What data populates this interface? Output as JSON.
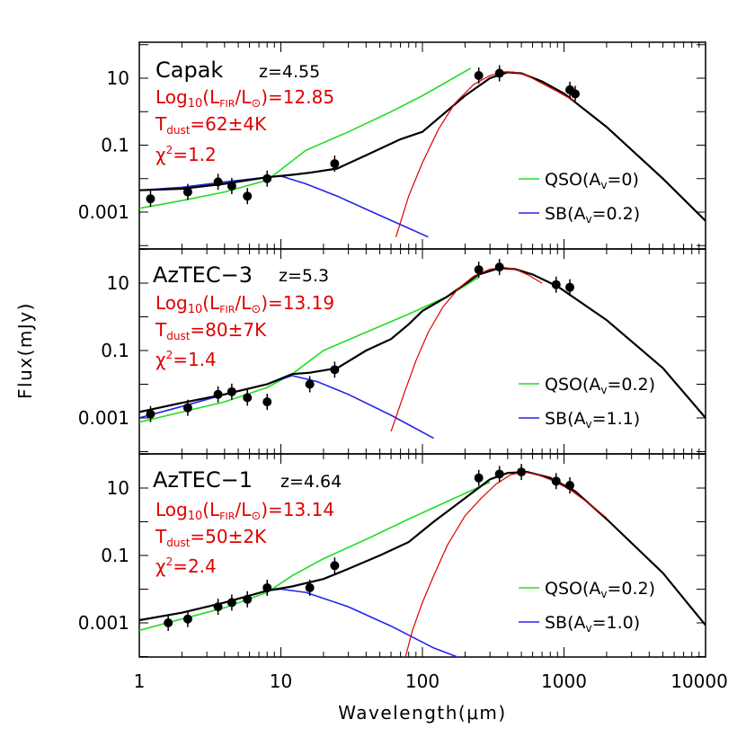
{
  "chart_data": {
    "type": "line",
    "xlabel": "Wavelength(μm)",
    "ylabel": "Flux(mJy)",
    "x_scale": "log",
    "y_scale": "log",
    "xlim": [
      1,
      10000
    ],
    "x_tick_labels": [
      "1",
      "10",
      "100",
      "1000",
      "10000"
    ],
    "y_tick_labels": [
      "10",
      "0.1",
      "0.001"
    ],
    "panels": [
      {
        "name": "Capak",
        "redshift": "z=4.55",
        "lfir_prefix": "Log",
        "lfir_sub": "10",
        "lfir_mid": "(L",
        "lfir_sub2": "FIR",
        "lfir_mid2": "/L",
        "lfir_sun": "⊙",
        "lfir_value": ")=12.85",
        "tdust_prefix": "T",
        "tdust_sub": "dust",
        "tdust_value": "=62±4K",
        "chi_prefix": "χ",
        "chi_sup": "2",
        "chi_value": "=1.2",
        "qso_legend_prefix": "QSO(A",
        "qso_legend_sub": "v",
        "qso_legend_suffix": "=0)",
        "sb_legend_prefix": "SB(A",
        "sb_legend_sub": "v",
        "sb_legend_suffix": "=0.2)",
        "ylim": [
          0.0001,
          60
        ],
        "photometry": [
          {
            "x": 1.2,
            "y": 0.0025
          },
          {
            "x": 2.2,
            "y": 0.004
          },
          {
            "x": 3.6,
            "y": 0.008
          },
          {
            "x": 4.5,
            "y": 0.006
          },
          {
            "x": 5.8,
            "y": 0.003
          },
          {
            "x": 8.0,
            "y": 0.01
          },
          {
            "x": 24,
            "y": 0.028
          },
          {
            "x": 250,
            "y": 12
          },
          {
            "x": 350,
            "y": 14
          },
          {
            "x": 1100,
            "y": 4.5
          },
          {
            "x": 1200,
            "y": 3.4
          }
        ],
        "series": [
          {
            "name": "QSO(Av=0)",
            "color": "#22dd22",
            "x": [
              1,
              2,
              4,
              8,
              15,
              30,
              60,
              100,
              220
            ],
            "y": [
              0.0013,
              0.0022,
              0.004,
              0.009,
              0.07,
              0.25,
              1.0,
              3.0,
              20
            ]
          },
          {
            "name": "SB(Av=0.2)",
            "color": "#2222ee",
            "x": [
              1,
              2,
              4,
              8,
              10,
              15,
              25,
              50,
              110
            ],
            "y": [
              0.0045,
              0.0055,
              0.008,
              0.011,
              0.012,
              0.007,
              0.003,
              0.0008,
              0.00018
            ]
          },
          {
            "name": "total",
            "color": "#000000",
            "x": [
              1,
              2,
              4,
              8,
              12,
              16,
              25,
              40,
              70,
              100,
              200,
              300,
              400,
              500,
              700,
              1000,
              2000,
              5000,
              10000
            ],
            "y": [
              0.0045,
              0.005,
              0.007,
              0.011,
              0.013,
              0.015,
              0.02,
              0.05,
              0.15,
              0.25,
              3,
              10,
              15,
              14,
              8,
              3.5,
              0.35,
              0.01,
              0.00055
            ]
          },
          {
            "name": "greybody",
            "color": "#dd0000",
            "x": [
              65,
              80,
              100,
              130,
              170,
              230,
              300,
              380,
              450,
              550,
              700,
              900,
              1200
            ],
            "y": [
              0.00018,
              0.003,
              0.03,
              0.3,
              1.8,
              6.5,
              12,
              15.5,
              15,
              12,
              7,
              4,
              2
            ]
          }
        ]
      },
      {
        "name": "AzTEC−3",
        "redshift": "z=5.3",
        "lfir_prefix": "Log",
        "lfir_sub": "10",
        "lfir_mid": "(L",
        "lfir_sub2": "FIR",
        "lfir_mid2": "/L",
        "lfir_sun": "⊙",
        "lfir_value": ")=13.19",
        "tdust_prefix": "T",
        "tdust_sub": "dust",
        "tdust_value": "=80±7K",
        "chi_prefix": "χ",
        "chi_sup": "2",
        "chi_value": "=1.4",
        "qso_legend_prefix": "QSO(A",
        "qso_legend_sub": "v",
        "qso_legend_suffix": "=0.2)",
        "sb_legend_prefix": "SB(A",
        "sb_legend_sub": "v",
        "sb_legend_suffix": "=1.1)",
        "ylim": [
          0.0003,
          60
        ],
        "photometry": [
          {
            "x": 1.2,
            "y": 0.0013
          },
          {
            "x": 2.2,
            "y": 0.002
          },
          {
            "x": 3.6,
            "y": 0.005
          },
          {
            "x": 4.5,
            "y": 0.006
          },
          {
            "x": 5.8,
            "y": 0.004
          },
          {
            "x": 8.0,
            "y": 0.003
          },
          {
            "x": 16,
            "y": 0.01
          },
          {
            "x": 24,
            "y": 0.027
          },
          {
            "x": 250,
            "y": 25
          },
          {
            "x": 350,
            "y": 30
          },
          {
            "x": 880,
            "y": 9
          },
          {
            "x": 1100,
            "y": 7.5
          }
        ],
        "series": [
          {
            "name": "QSO(Av=0.2)",
            "color": "#22dd22",
            "x": [
              1,
              2,
              4,
              8,
              12,
              20,
              40,
              80,
              150,
              250
            ],
            "y": [
              0.00075,
              0.0015,
              0.003,
              0.008,
              0.02,
              0.1,
              0.35,
              1.2,
              4,
              15
            ]
          },
          {
            "name": "SB(Av=1.1)",
            "color": "#2222ee",
            "x": [
              1,
              2,
              4,
              8,
              12,
              18,
              30,
              60,
              120
            ],
            "y": [
              0.001,
              0.0022,
              0.005,
              0.01,
              0.018,
              0.012,
              0.005,
              0.0012,
              0.00025
            ]
          },
          {
            "name": "total",
            "color": "#000000",
            "x": [
              1,
              2,
              4,
              8,
              12,
              16,
              25,
              40,
              60,
              80,
              100,
              150,
              250,
              350,
              450,
              600,
              900,
              2000,
              5000,
              10000
            ],
            "y": [
              0.0015,
              0.0028,
              0.005,
              0.01,
              0.02,
              0.022,
              0.03,
              0.1,
              0.22,
              0.6,
              1.5,
              4,
              18,
              28,
              26,
              18,
              8,
              0.8,
              0.03,
              0.001
            ]
          },
          {
            "name": "greybody",
            "color": "#dd0000",
            "x": [
              60,
              75,
              90,
              110,
              140,
              180,
              230,
              300,
              380,
              450,
              550,
              700
            ],
            "y": [
              0.0004,
              0.006,
              0.05,
              0.35,
              2,
              7,
              16,
              26,
              29,
              26,
              18,
              10
            ]
          }
        ]
      },
      {
        "name": "AzTEC−1",
        "redshift": "z=4.64",
        "lfir_prefix": "Log",
        "lfir_sub": "10",
        "lfir_mid": "(L",
        "lfir_sub2": "FIR",
        "lfir_mid2": "/L",
        "lfir_sun": "⊙",
        "lfir_value": ")=13.14",
        "tdust_prefix": "T",
        "tdust_sub": "dust",
        "tdust_value": "=50±2K",
        "chi_prefix": "χ",
        "chi_sup": "2",
        "chi_value": "=2.4",
        "qso_legend_prefix": "QSO(A",
        "qso_legend_sub": "v",
        "qso_legend_suffix": "=0.2)",
        "sb_legend_prefix": "SB(A",
        "sb_legend_sub": "v",
        "sb_legend_suffix": "=1.0)",
        "ylim": [
          0.0001,
          60
        ],
        "photometry": [
          {
            "x": 1.6,
            "y": 0.001
          },
          {
            "x": 2.2,
            "y": 0.0013
          },
          {
            "x": 3.6,
            "y": 0.003
          },
          {
            "x": 4.5,
            "y": 0.004
          },
          {
            "x": 5.8,
            "y": 0.005
          },
          {
            "x": 8.0,
            "y": 0.011
          },
          {
            "x": 16,
            "y": 0.011
          },
          {
            "x": 24,
            "y": 0.05
          },
          {
            "x": 250,
            "y": 20
          },
          {
            "x": 350,
            "y": 26
          },
          {
            "x": 500,
            "y": 30
          },
          {
            "x": 880,
            "y": 16
          },
          {
            "x": 1100,
            "y": 12
          }
        ],
        "series": [
          {
            "name": "QSO(Av=0.2)",
            "color": "#22dd22",
            "x": [
              1,
              2,
              4,
              8,
              12,
              20,
              40,
              80,
              150,
              300
            ],
            "y": [
              0.0006,
              0.0013,
              0.0028,
              0.008,
              0.025,
              0.08,
              0.3,
              1.2,
              4,
              15
            ]
          },
          {
            "name": "SB(Av=1.0)",
            "color": "#2222ee",
            "x": [
              1,
              2,
              4,
              8,
              10,
              15,
              30,
              60,
              120,
              200
            ],
            "y": [
              0.0012,
              0.002,
              0.004,
              0.009,
              0.01,
              0.008,
              0.003,
              0.0008,
              0.00018,
              8e-05
            ]
          },
          {
            "name": "total",
            "color": "#000000",
            "x": [
              1,
              2,
              4,
              8,
              12,
              20,
              30,
              50,
              80,
              120,
              200,
              300,
              400,
              550,
              800,
              1200,
              2000,
              5000,
              10000
            ],
            "y": [
              0.0012,
              0.002,
              0.004,
              0.009,
              0.012,
              0.02,
              0.04,
              0.1,
              0.25,
              1,
              5,
              18,
              28,
              30,
              20,
              8,
              1.2,
              0.03,
              0.00085
            ]
          },
          {
            "name": "greybody",
            "color": "#dd0000",
            "x": [
              75,
              85,
              100,
              120,
              150,
              200,
              260,
              330,
              420,
              520,
              650,
              850,
              1100,
              1500,
              2000
            ],
            "y": [
              8e-05,
              0.0006,
              0.004,
              0.025,
              0.2,
              1.5,
              5,
              13,
              25,
              30,
              25,
              16,
              9,
              3.5,
              1.3
            ]
          }
        ]
      }
    ]
  }
}
